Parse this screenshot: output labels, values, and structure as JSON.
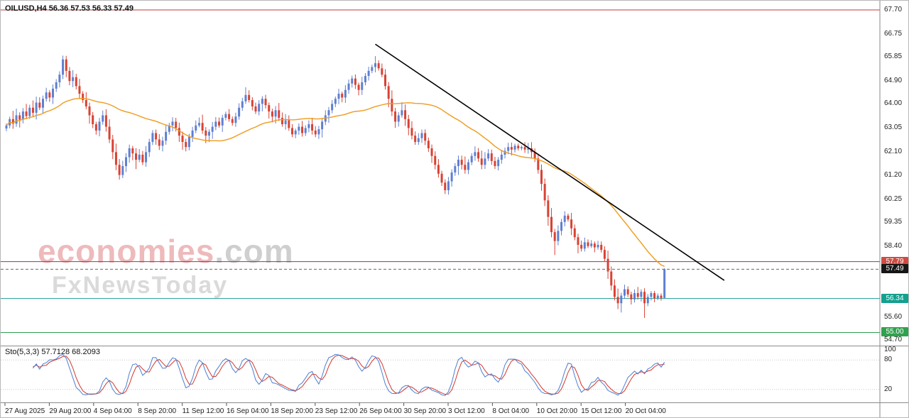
{
  "header": {
    "quote_line": "OILUSD,H4 56.36 57.53 56.33 57.49"
  },
  "watermark": {
    "brand": "economies",
    "tld": ".com",
    "line2": "FxNewsToday"
  },
  "indicator": {
    "label": "Sto(5,3,3) 57.7128 68.2093"
  },
  "price_axis": {
    "visible_labels": [
      "67.70",
      "66.75",
      "65.85",
      "64.90",
      "64.00",
      "63.05",
      "62.10",
      "61.20",
      "60.25",
      "59.35",
      "58.40",
      "55.60",
      "54.70"
    ],
    "badges": [
      {
        "text": "57.79",
        "price": 57.79,
        "bg": "#d14b42"
      },
      {
        "text": "57.49",
        "price": 57.49,
        "bg": "#161616"
      },
      {
        "text": "56.34",
        "price": 56.34,
        "bg": "#14a08e"
      },
      {
        "text": "55.00",
        "price": 55.0,
        "bg": "#2fa24d"
      }
    ]
  },
  "time_axis": {
    "labels": [
      "27 Aug 2025",
      "29 Aug 20:00",
      "4 Sep 04:00",
      "8 Sep 20:00",
      "11 Sep 12:00",
      "16 Sep 04:00",
      "18 Sep 20:00",
      "23 Sep 12:00",
      "26 Sep 04:00",
      "30 Sep 20:00",
      "3 Oct 12:00",
      "8 Oct 04:00",
      "10 Oct 20:00",
      "15 Oct 12:00",
      "20 Oct 04:00"
    ]
  },
  "chart_data": {
    "type": "candlestick",
    "symbol": "OILUSD",
    "timeframe": "H4",
    "quote_ohlc": {
      "open": 56.36,
      "high": 57.53,
      "low": 56.33,
      "close": 57.49
    },
    "y_axis": {
      "top_price": 67.95,
      "bottom_price": 54.51
    },
    "closes": [
      63.15,
      63.4,
      63.22,
      63.55,
      63.38,
      63.7,
      63.52,
      63.85,
      63.65,
      64.05,
      63.85,
      64.2,
      64.45,
      64.25,
      64.6,
      64.85,
      65.15,
      65.75,
      65.3,
      64.9,
      65.05,
      64.7,
      64.4,
      64.15,
      63.9,
      63.55,
      63.2,
      62.95,
      63.3,
      63.55,
      63.1,
      62.6,
      62.1,
      61.6,
      61.2,
      61.55,
      61.9,
      62.25,
      62.05,
      61.8,
      62.0,
      61.7,
      62.1,
      62.5,
      62.85,
      62.6,
      62.35,
      62.55,
      62.9,
      63.15,
      63.3,
      63.05,
      62.75,
      62.5,
      62.3,
      62.7,
      62.95,
      63.15,
      63.25,
      62.95,
      62.75,
      62.9,
      63.1,
      63.3,
      63.15,
      63.45,
      63.6,
      63.4,
      63.25,
      63.5,
      63.85,
      64.1,
      64.35,
      64.15,
      63.9,
      63.7,
      64.0,
      64.2,
      63.95,
      63.7,
      63.5,
      63.75,
      63.45,
      63.2,
      63.35,
      63.05,
      62.8,
      62.95,
      63.1,
      62.85,
      63.05,
      63.2,
      62.95,
      62.8,
      63.0,
      63.3,
      63.55,
      63.75,
      64.0,
      64.2,
      64.4,
      64.25,
      64.55,
      64.8,
      65.0,
      64.75,
      64.55,
      64.85,
      65.1,
      65.3,
      65.45,
      65.6,
      65.4,
      65.15,
      64.7,
      64.2,
      63.7,
      63.3,
      63.55,
      63.75,
      63.4,
      63.05,
      62.75,
      62.5,
      62.65,
      62.85,
      62.55,
      62.25,
      61.95,
      61.6,
      61.25,
      60.9,
      60.6,
      60.95,
      61.3,
      61.55,
      61.8,
      61.6,
      61.4,
      61.7,
      61.95,
      62.1,
      61.85,
      61.6,
      61.85,
      62.05,
      61.75,
      61.55,
      61.8,
      62.0,
      62.15,
      62.3,
      62.2,
      62.35,
      62.25,
      62.3,
      62.2,
      62.25,
      62.1,
      61.85,
      61.4,
      60.85,
      60.2,
      59.55,
      58.95,
      58.6,
      59.0,
      59.35,
      59.6,
      59.45,
      59.1,
      58.75,
      58.45,
      58.3,
      58.55,
      58.4,
      58.5,
      58.35,
      58.45,
      58.25,
      57.9,
      57.4,
      56.85,
      56.4,
      56.15,
      56.45,
      56.7,
      56.5,
      56.3,
      56.55,
      56.4,
      56.6,
      56.15,
      56.4,
      56.55,
      56.35,
      56.45,
      56.36,
      57.49
    ],
    "wick_overrides": {
      "17": {
        "high": 65.9
      },
      "34": {
        "low": 61.02
      },
      "111": {
        "high": 65.88
      },
      "132": {
        "low": 60.45
      },
      "165": {
        "low": 58.05
      },
      "184": {
        "low": 55.92
      },
      "192": {
        "low": 55.57
      }
    },
    "last_candle": {
      "open": 56.36,
      "high": 57.53,
      "low": 56.33,
      "close": 57.49
    },
    "up_color": "#5f7fd0",
    "down_color": "#d84233",
    "ma": {
      "period": 35,
      "color": "#ef9b1d"
    },
    "trendline": {
      "start_index": 111,
      "start_price": 66.35,
      "end_index": 216,
      "end_price": 57.05,
      "color": "#000000"
    },
    "levels": [
      {
        "price": 67.7,
        "color": "#c03a3a",
        "style": "solid"
      },
      {
        "price": 57.79,
        "color": "#8e3a62",
        "style": "solid"
      },
      {
        "price": 57.49,
        "color": "#666666",
        "style": "dashed"
      },
      {
        "price": 56.34,
        "color": "#2aa79b",
        "style": "solid"
      },
      {
        "price": 55.0,
        "color": "#2e9e4f",
        "style": "solid"
      }
    ],
    "stochastic": {
      "k_period": 5,
      "d_period": 3,
      "slowing": 3,
      "k_value": 57.7128,
      "d_value": 68.2093,
      "k_color": "#4a7fd4",
      "d_color": "#d3372e",
      "axis_labels": [
        "100",
        "80",
        "20"
      ],
      "level_lines": [
        80,
        20
      ]
    }
  }
}
